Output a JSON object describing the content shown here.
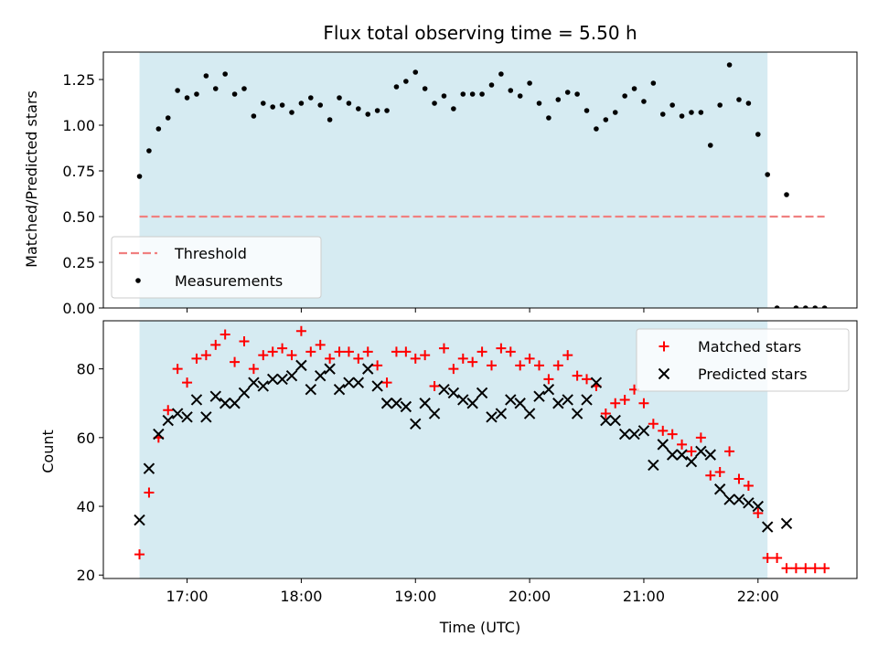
{
  "chart_data": [
    {
      "type": "scatter",
      "title": "Flux total observing time = 5.50 h",
      "xlabel": "",
      "ylabel": "Matched/Predicted stars",
      "ylim": [
        0,
        1.4
      ],
      "xlim": [
        "16:16",
        "22:52"
      ],
      "yticks": [
        "0.00",
        "0.25",
        "0.50",
        "0.75",
        "1.00",
        "1.25"
      ],
      "shaded_interval": [
        "16:35",
        "22:05"
      ],
      "threshold": {
        "name": "Threshold",
        "value": 0.5,
        "x_range": [
          "16:35",
          "22:35"
        ],
        "color": "#f08080",
        "style": "dashed"
      },
      "legend": {
        "placement": "lower-left",
        "entries": [
          "Threshold",
          "Measurements"
        ]
      },
      "series": [
        {
          "name": "Measurements",
          "color": "#000000",
          "marker": "dot",
          "points": [
            [
              "16:35",
              0.72
            ],
            [
              "16:40",
              0.86
            ],
            [
              "16:45",
              0.98
            ],
            [
              "16:50",
              1.04
            ],
            [
              "16:55",
              1.19
            ],
            [
              "17:00",
              1.15
            ],
            [
              "17:05",
              1.17
            ],
            [
              "17:10",
              1.27
            ],
            [
              "17:15",
              1.2
            ],
            [
              "17:20",
              1.28
            ],
            [
              "17:25",
              1.17
            ],
            [
              "17:30",
              1.2
            ],
            [
              "17:35",
              1.05
            ],
            [
              "17:40",
              1.12
            ],
            [
              "17:45",
              1.1
            ],
            [
              "17:50",
              1.11
            ],
            [
              "17:55",
              1.07
            ],
            [
              "18:00",
              1.12
            ],
            [
              "18:05",
              1.15
            ],
            [
              "18:10",
              1.11
            ],
            [
              "18:15",
              1.03
            ],
            [
              "18:20",
              1.15
            ],
            [
              "18:25",
              1.12
            ],
            [
              "18:30",
              1.09
            ],
            [
              "18:35",
              1.06
            ],
            [
              "18:40",
              1.08
            ],
            [
              "18:45",
              1.08
            ],
            [
              "18:50",
              1.21
            ],
            [
              "18:55",
              1.24
            ],
            [
              "19:00",
              1.29
            ],
            [
              "19:05",
              1.2
            ],
            [
              "19:10",
              1.12
            ],
            [
              "19:15",
              1.16
            ],
            [
              "19:20",
              1.09
            ],
            [
              "19:25",
              1.17
            ],
            [
              "19:30",
              1.17
            ],
            [
              "19:35",
              1.17
            ],
            [
              "19:40",
              1.22
            ],
            [
              "19:45",
              1.28
            ],
            [
              "19:50",
              1.19
            ],
            [
              "19:55",
              1.16
            ],
            [
              "20:00",
              1.23
            ],
            [
              "20:05",
              1.12
            ],
            [
              "20:10",
              1.04
            ],
            [
              "20:15",
              1.14
            ],
            [
              "20:20",
              1.18
            ],
            [
              "20:25",
              1.17
            ],
            [
              "20:30",
              1.08
            ],
            [
              "20:35",
              0.98
            ],
            [
              "20:40",
              1.03
            ],
            [
              "20:45",
              1.07
            ],
            [
              "20:50",
              1.16
            ],
            [
              "20:55",
              1.2
            ],
            [
              "21:00",
              1.13
            ],
            [
              "21:05",
              1.23
            ],
            [
              "21:10",
              1.06
            ],
            [
              "21:15",
              1.11
            ],
            [
              "21:20",
              1.05
            ],
            [
              "21:25",
              1.07
            ],
            [
              "21:30",
              1.07
            ],
            [
              "21:35",
              0.89
            ],
            [
              "21:40",
              1.11
            ],
            [
              "21:45",
              1.33
            ],
            [
              "21:50",
              1.14
            ],
            [
              "21:55",
              1.12
            ],
            [
              "22:00",
              0.95
            ],
            [
              "22:05",
              0.73
            ],
            [
              "22:10",
              0.0
            ],
            [
              "22:15",
              0.62
            ],
            [
              "22:20",
              0.0
            ],
            [
              "22:25",
              0.0
            ],
            [
              "22:30",
              0.0
            ],
            [
              "22:35",
              0.0
            ]
          ]
        }
      ]
    },
    {
      "type": "scatter",
      "title": "",
      "xlabel": "Time (UTC)",
      "ylabel": "Count",
      "ylim": [
        19,
        94
      ],
      "xlim": [
        "16:16",
        "22:52"
      ],
      "xticks": [
        "17:00",
        "18:00",
        "19:00",
        "20:00",
        "21:00",
        "22:00"
      ],
      "yticks": [
        "20",
        "40",
        "60",
        "80"
      ],
      "shaded_interval": [
        "16:35",
        "22:05"
      ],
      "legend": {
        "placement": "top-right",
        "entries": [
          "Matched stars",
          "Predicted stars"
        ]
      },
      "series": [
        {
          "name": "Matched stars",
          "color": "#ff0000",
          "marker": "plus",
          "points": [
            [
              "16:35",
              26
            ],
            [
              "16:40",
              44
            ],
            [
              "16:45",
              60
            ],
            [
              "16:50",
              68
            ],
            [
              "16:55",
              80
            ],
            [
              "17:00",
              76
            ],
            [
              "17:05",
              83
            ],
            [
              "17:10",
              84
            ],
            [
              "17:15",
              87
            ],
            [
              "17:20",
              90
            ],
            [
              "17:25",
              82
            ],
            [
              "17:30",
              88
            ],
            [
              "17:35",
              80
            ],
            [
              "17:40",
              84
            ],
            [
              "17:45",
              85
            ],
            [
              "17:50",
              86
            ],
            [
              "17:55",
              84
            ],
            [
              "18:00",
              91
            ],
            [
              "18:05",
              85
            ],
            [
              "18:10",
              87
            ],
            [
              "18:15",
              83
            ],
            [
              "18:20",
              85
            ],
            [
              "18:25",
              85
            ],
            [
              "18:30",
              83
            ],
            [
              "18:35",
              85
            ],
            [
              "18:40",
              81
            ],
            [
              "18:45",
              76
            ],
            [
              "18:50",
              85
            ],
            [
              "18:55",
              85
            ],
            [
              "19:00",
              83
            ],
            [
              "19:05",
              84
            ],
            [
              "19:10",
              75
            ],
            [
              "19:15",
              86
            ],
            [
              "19:20",
              80
            ],
            [
              "19:25",
              83
            ],
            [
              "19:30",
              82
            ],
            [
              "19:35",
              85
            ],
            [
              "19:40",
              81
            ],
            [
              "19:45",
              86
            ],
            [
              "19:50",
              85
            ],
            [
              "19:55",
              81
            ],
            [
              "20:00",
              83
            ],
            [
              "20:05",
              81
            ],
            [
              "20:10",
              77
            ],
            [
              "20:15",
              81
            ],
            [
              "20:20",
              84
            ],
            [
              "20:25",
              78
            ],
            [
              "20:30",
              77
            ],
            [
              "20:35",
              75
            ],
            [
              "20:40",
              67
            ],
            [
              "20:45",
              70
            ],
            [
              "20:50",
              71
            ],
            [
              "20:55",
              74
            ],
            [
              "21:00",
              70
            ],
            [
              "21:05",
              64
            ],
            [
              "21:10",
              62
            ],
            [
              "21:15",
              61
            ],
            [
              "21:20",
              58
            ],
            [
              "21:25",
              56
            ],
            [
              "21:30",
              60
            ],
            [
              "21:35",
              49
            ],
            [
              "21:40",
              50
            ],
            [
              "21:45",
              56
            ],
            [
              "21:50",
              48
            ],
            [
              "21:55",
              46
            ],
            [
              "22:00",
              38
            ],
            [
              "22:05",
              25
            ],
            [
              "22:10",
              25
            ],
            [
              "22:15",
              22
            ],
            [
              "22:20",
              22
            ],
            [
              "22:25",
              22
            ],
            [
              "22:30",
              22
            ],
            [
              "22:35",
              22
            ]
          ]
        },
        {
          "name": "Predicted stars",
          "color": "#000000",
          "marker": "x",
          "points": [
            [
              "16:35",
              36
            ],
            [
              "16:40",
              51
            ],
            [
              "16:45",
              61
            ],
            [
              "16:50",
              65
            ],
            [
              "16:55",
              67
            ],
            [
              "17:00",
              66
            ],
            [
              "17:05",
              71
            ],
            [
              "17:10",
              66
            ],
            [
              "17:15",
              72
            ],
            [
              "17:20",
              70
            ],
            [
              "17:25",
              70
            ],
            [
              "17:30",
              73
            ],
            [
              "17:35",
              76
            ],
            [
              "17:40",
              75
            ],
            [
              "17:45",
              77
            ],
            [
              "17:50",
              77
            ],
            [
              "17:55",
              78
            ],
            [
              "18:00",
              81
            ],
            [
              "18:05",
              74
            ],
            [
              "18:10",
              78
            ],
            [
              "18:15",
              80
            ],
            [
              "18:20",
              74
            ],
            [
              "18:25",
              76
            ],
            [
              "18:30",
              76
            ],
            [
              "18:35",
              80
            ],
            [
              "18:40",
              75
            ],
            [
              "18:45",
              70
            ],
            [
              "18:50",
              70
            ],
            [
              "18:55",
              69
            ],
            [
              "19:00",
              64
            ],
            [
              "19:05",
              70
            ],
            [
              "19:10",
              67
            ],
            [
              "19:15",
              74
            ],
            [
              "19:20",
              73
            ],
            [
              "19:25",
              71
            ],
            [
              "19:30",
              70
            ],
            [
              "19:35",
              73
            ],
            [
              "19:40",
              66
            ],
            [
              "19:45",
              67
            ],
            [
              "19:50",
              71
            ],
            [
              "19:55",
              70
            ],
            [
              "20:00",
              67
            ],
            [
              "20:05",
              72
            ],
            [
              "20:10",
              74
            ],
            [
              "20:15",
              70
            ],
            [
              "20:20",
              71
            ],
            [
              "20:25",
              67
            ],
            [
              "20:30",
              71
            ],
            [
              "20:35",
              76
            ],
            [
              "20:40",
              65
            ],
            [
              "20:45",
              65
            ],
            [
              "20:50",
              61
            ],
            [
              "20:55",
              61
            ],
            [
              "21:00",
              62
            ],
            [
              "21:05",
              52
            ],
            [
              "21:10",
              58
            ],
            [
              "21:15",
              55
            ],
            [
              "21:20",
              55
            ],
            [
              "21:25",
              53
            ],
            [
              "21:30",
              56
            ],
            [
              "21:35",
              55
            ],
            [
              "21:40",
              45
            ],
            [
              "21:45",
              42
            ],
            [
              "21:50",
              42
            ],
            [
              "21:55",
              41
            ],
            [
              "22:00",
              40
            ],
            [
              "22:05",
              34
            ],
            [
              "22:15",
              35
            ]
          ]
        }
      ]
    }
  ]
}
